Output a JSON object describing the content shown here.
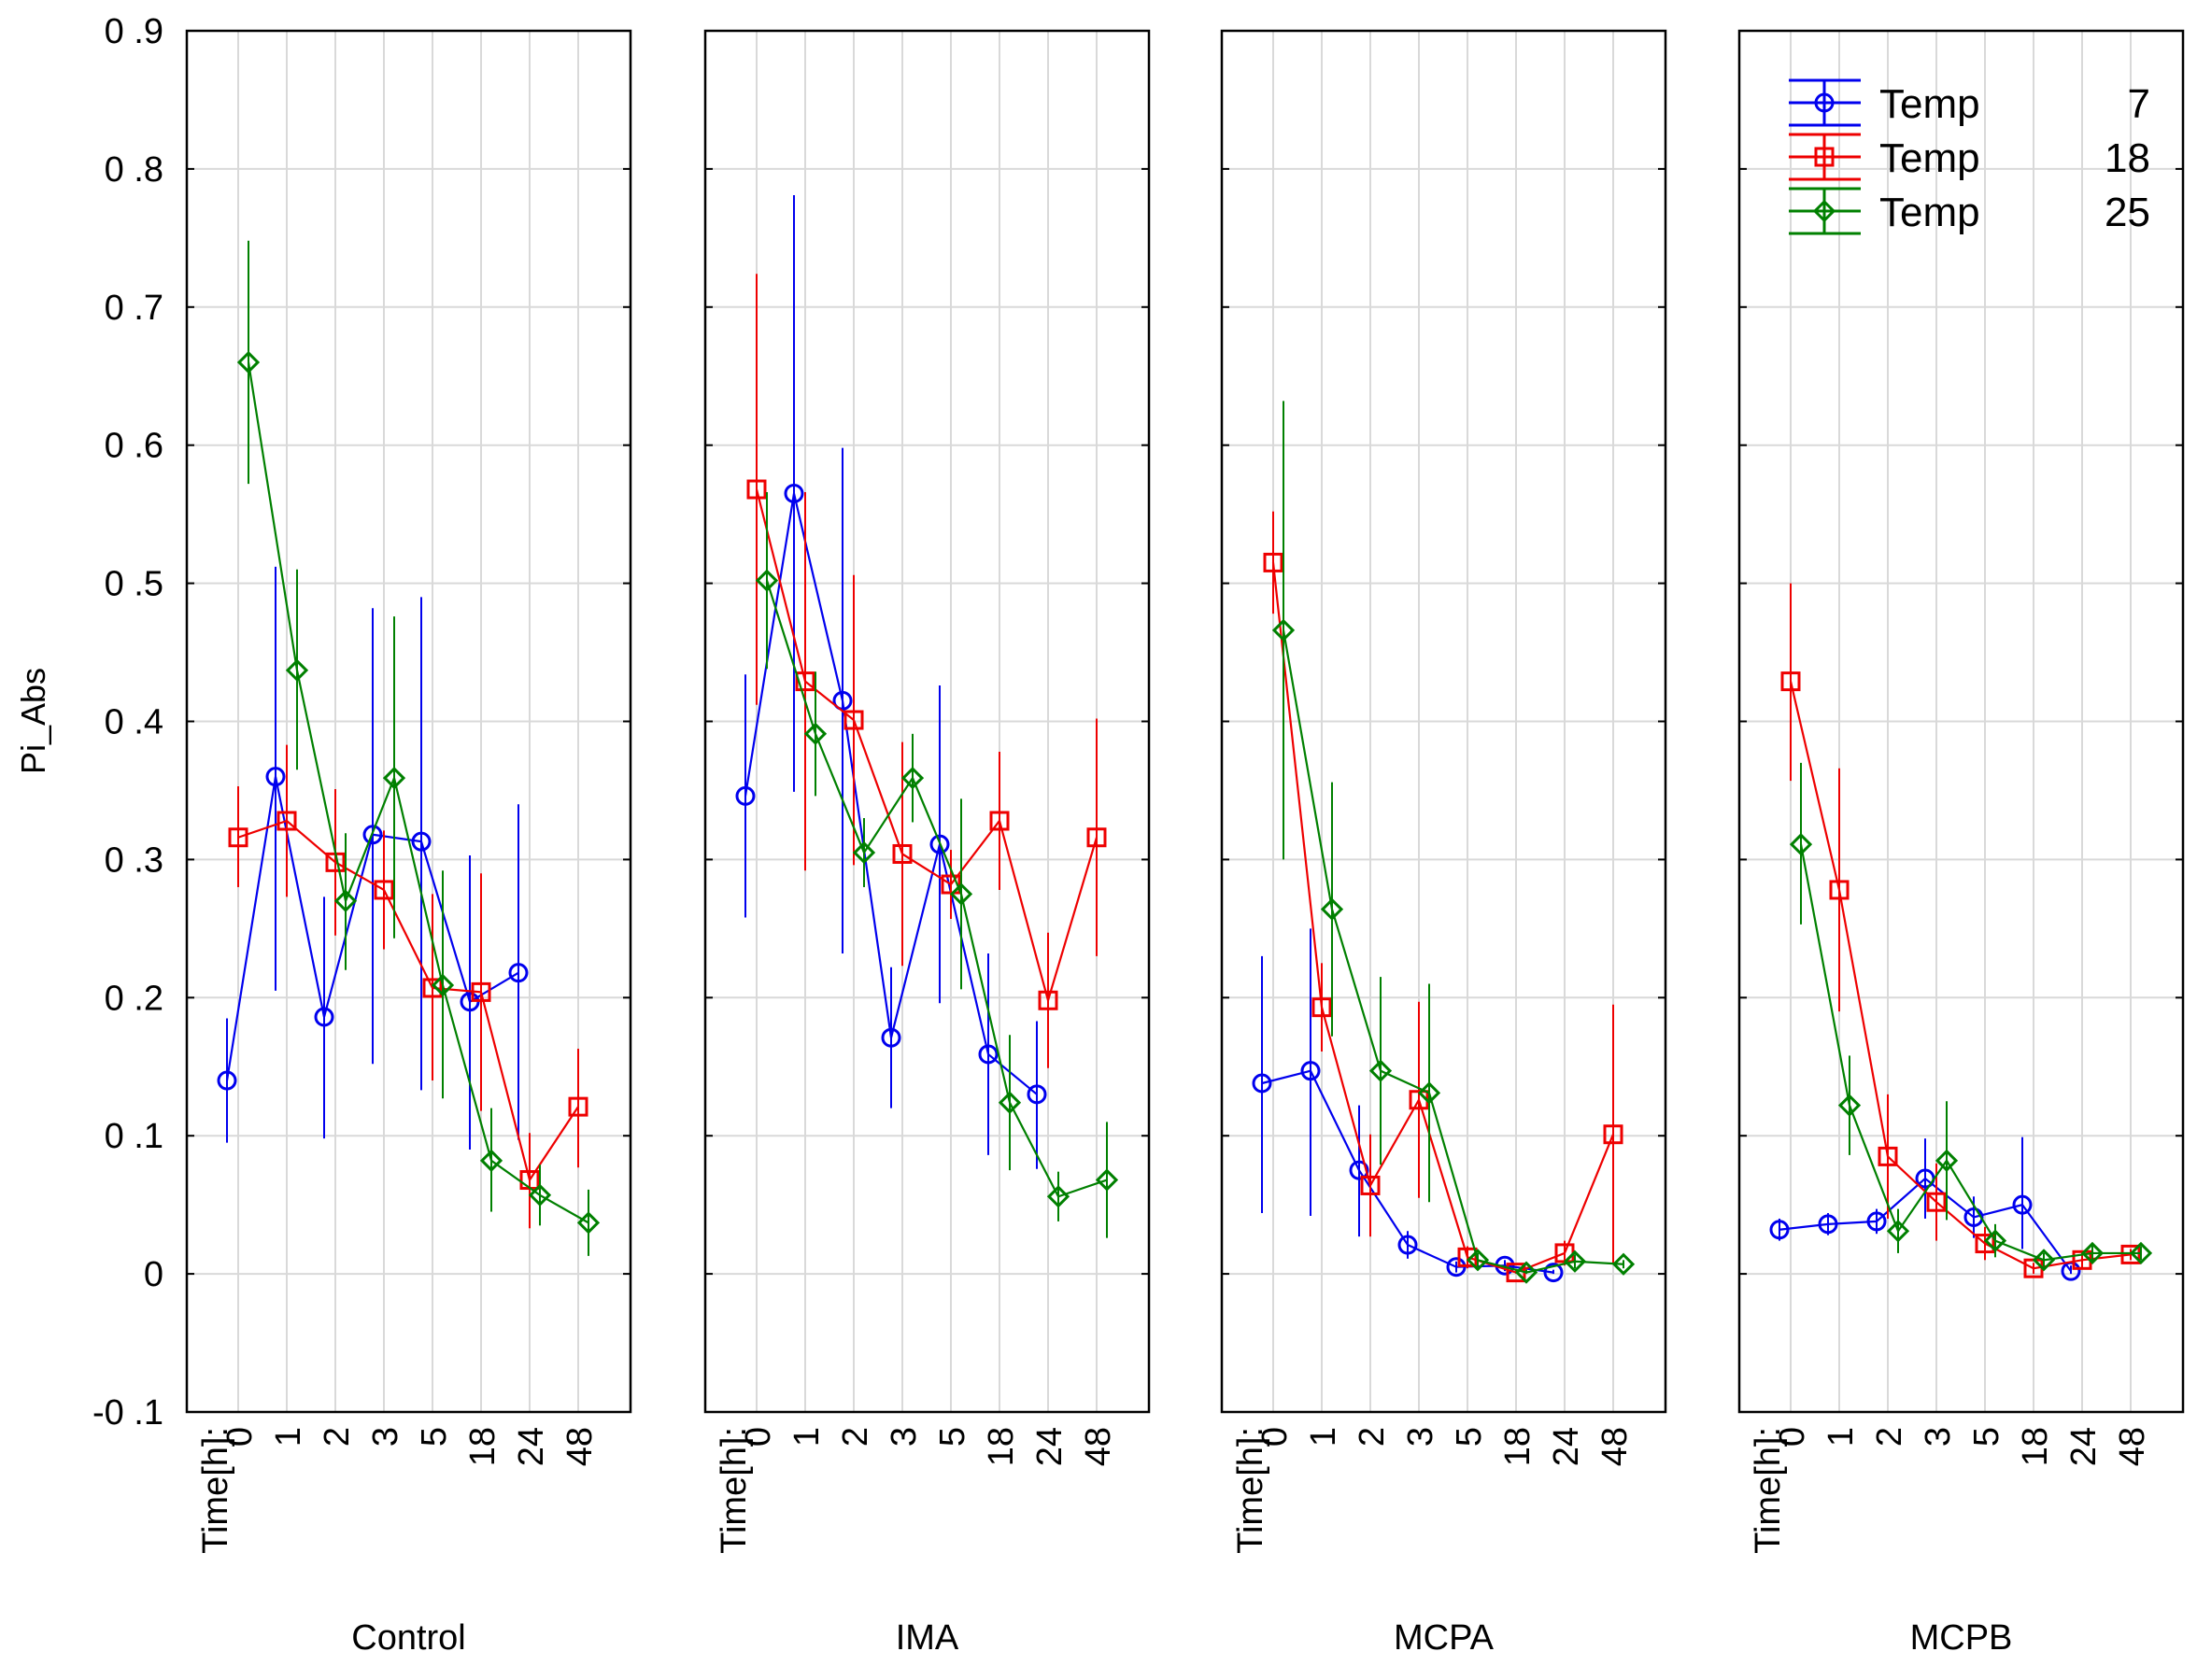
{
  "chart_data": {
    "type": "line",
    "ylabel": "Pi_Abs",
    "ylim": [
      -0.1,
      0.9
    ],
    "yticks": [
      -0.1,
      0,
      0.1,
      0.2,
      0.3,
      0.4,
      0.5,
      0.6,
      0.7,
      0.8,
      0.9
    ],
    "ytick_labels": [
      "-0 .1",
      "0",
      "0 .1",
      "0 .2",
      "0 .3",
      "0 .4",
      "0 .5",
      "0 .6",
      "0 .7",
      "0 .8",
      "0 .9"
    ],
    "x_axis_title": "Time[h]:",
    "categories": [
      "0",
      "1",
      "2",
      "3",
      "5",
      "18",
      "24",
      "48"
    ],
    "grid": true,
    "legend": {
      "position": "top-right",
      "entries": [
        {
          "name": "Temp",
          "value": "7"
        },
        {
          "name": "Temp",
          "value": "18"
        },
        {
          "name": "Temp",
          "value": "25"
        }
      ]
    },
    "series_colors": {
      "7": "#0000ee",
      "18": "#ee0000",
      "25": "#008000"
    },
    "series_markers": {
      "7": "circle",
      "18": "square",
      "25": "diamond"
    },
    "panels": [
      {
        "label": "Control",
        "series": [
          {
            "name": "7",
            "values": [
              0.14,
              0.36,
              0.186,
              0.318,
              0.313,
              0.197,
              0.218,
              null
            ],
            "err_low": [
              0.095,
              0.205,
              0.098,
              0.152,
              0.133,
              0.09,
              0.097,
              null
            ],
            "err_high": [
              0.185,
              0.512,
              0.273,
              0.482,
              0.49,
              0.303,
              0.34,
              null
            ]
          },
          {
            "name": "18",
            "values": [
              0.316,
              0.328,
              0.298,
              0.278,
              0.207,
              0.204,
              0.068,
              0.121
            ],
            "err_low": [
              0.28,
              0.273,
              0.245,
              0.235,
              0.14,
              0.118,
              0.033,
              0.077
            ],
            "err_high": [
              0.353,
              0.383,
              0.351,
              0.321,
              0.275,
              0.29,
              0.102,
              0.163
            ]
          },
          {
            "name": "25",
            "values": [
              0.66,
              0.437,
              0.27,
              0.359,
              0.209,
              0.082,
              0.057,
              0.037
            ],
            "err_low": [
              0.572,
              0.365,
              0.22,
              0.243,
              0.127,
              0.045,
              0.035,
              0.013
            ],
            "err_high": [
              0.748,
              0.51,
              0.319,
              0.476,
              0.292,
              0.12,
              0.079,
              0.061
            ]
          }
        ]
      },
      {
        "label": "IMA",
        "series": [
          {
            "name": "7",
            "values": [
              0.346,
              0.565,
              0.415,
              0.171,
              0.311,
              0.159,
              0.13,
              null
            ],
            "err_low": [
              0.258,
              0.349,
              0.232,
              0.12,
              0.196,
              0.086,
              0.076,
              null
            ],
            "err_high": [
              0.434,
              0.781,
              0.598,
              0.222,
              0.426,
              0.232,
              0.183,
              null
            ]
          },
          {
            "name": "18",
            "values": [
              0.568,
              0.429,
              0.401,
              0.304,
              0.282,
              0.328,
              0.198,
              0.316
            ],
            "err_low": [
              0.412,
              0.292,
              0.296,
              0.223,
              0.257,
              0.278,
              0.149,
              0.23
            ],
            "err_high": [
              0.724,
              0.566,
              0.506,
              0.385,
              0.307,
              0.378,
              0.247,
              0.402
            ]
          },
          {
            "name": "25",
            "values": [
              0.502,
              0.391,
              0.305,
              0.359,
              0.275,
              0.124,
              0.056,
              0.068
            ],
            "err_low": [
              0.438,
              0.346,
              0.28,
              0.327,
              0.206,
              0.075,
              0.038,
              0.026
            ],
            "err_high": [
              0.566,
              0.436,
              0.33,
              0.391,
              0.344,
              0.173,
              0.074,
              0.11
            ]
          }
        ]
      },
      {
        "label": "MCPA",
        "series": [
          {
            "name": "7",
            "values": [
              0.138,
              0.147,
              0.075,
              0.021,
              0.005,
              0.006,
              0.001,
              null
            ],
            "err_low": [
              0.044,
              0.042,
              0.027,
              0.011,
              0.001,
              0.002,
              0.0,
              null
            ],
            "err_high": [
              0.23,
              0.25,
              0.122,
              0.031,
              0.009,
              0.01,
              0.003,
              null
            ]
          },
          {
            "name": "18",
            "values": [
              0.515,
              0.193,
              0.064,
              0.126,
              0.012,
              0.001,
              0.015,
              0.101
            ],
            "err_low": [
              0.478,
              0.161,
              0.027,
              0.055,
              0.004,
              0.0,
              0.006,
              0.007
            ],
            "err_high": [
              0.552,
              0.225,
              0.101,
              0.197,
              0.02,
              0.003,
              0.024,
              0.195
            ]
          },
          {
            "name": "25",
            "values": [
              0.466,
              0.264,
              0.147,
              0.131,
              0.01,
              0.001,
              0.009,
              0.007
            ],
            "err_low": [
              0.3,
              0.172,
              0.079,
              0.052,
              0.005,
              0.0,
              0.004,
              0.004
            ],
            "err_high": [
              0.632,
              0.356,
              0.215,
              0.21,
              0.015,
              0.003,
              0.014,
              0.01
            ]
          }
        ]
      },
      {
        "label": "MCPB",
        "series": [
          {
            "name": "7",
            "values": [
              0.032,
              0.036,
              0.038,
              0.069,
              0.041,
              0.05,
              0.002,
              null
            ],
            "err_low": [
              0.024,
              0.028,
              0.029,
              0.04,
              0.026,
              0.018,
              0.0,
              null
            ],
            "err_high": [
              0.04,
              0.044,
              0.047,
              0.098,
              0.056,
              0.099,
              0.006,
              null
            ]
          },
          {
            "name": "18",
            "values": [
              0.429,
              0.278,
              0.085,
              0.052,
              0.022,
              0.004,
              0.01,
              0.014
            ],
            "err_low": [
              0.357,
              0.19,
              0.04,
              0.024,
              0.01,
              0.0,
              0.004,
              0.01
            ],
            "err_high": [
              0.5,
              0.366,
              0.13,
              0.08,
              0.034,
              0.008,
              0.016,
              0.018
            ]
          },
          {
            "name": "25",
            "values": [
              0.311,
              0.122,
              0.031,
              0.082,
              0.024,
              0.01,
              0.015,
              0.015
            ],
            "err_low": [
              0.253,
              0.086,
              0.015,
              0.039,
              0.012,
              0.005,
              0.009,
              0.01
            ],
            "err_high": [
              0.37,
              0.158,
              0.047,
              0.125,
              0.036,
              0.015,
              0.021,
              0.02
            ]
          }
        ]
      }
    ]
  }
}
